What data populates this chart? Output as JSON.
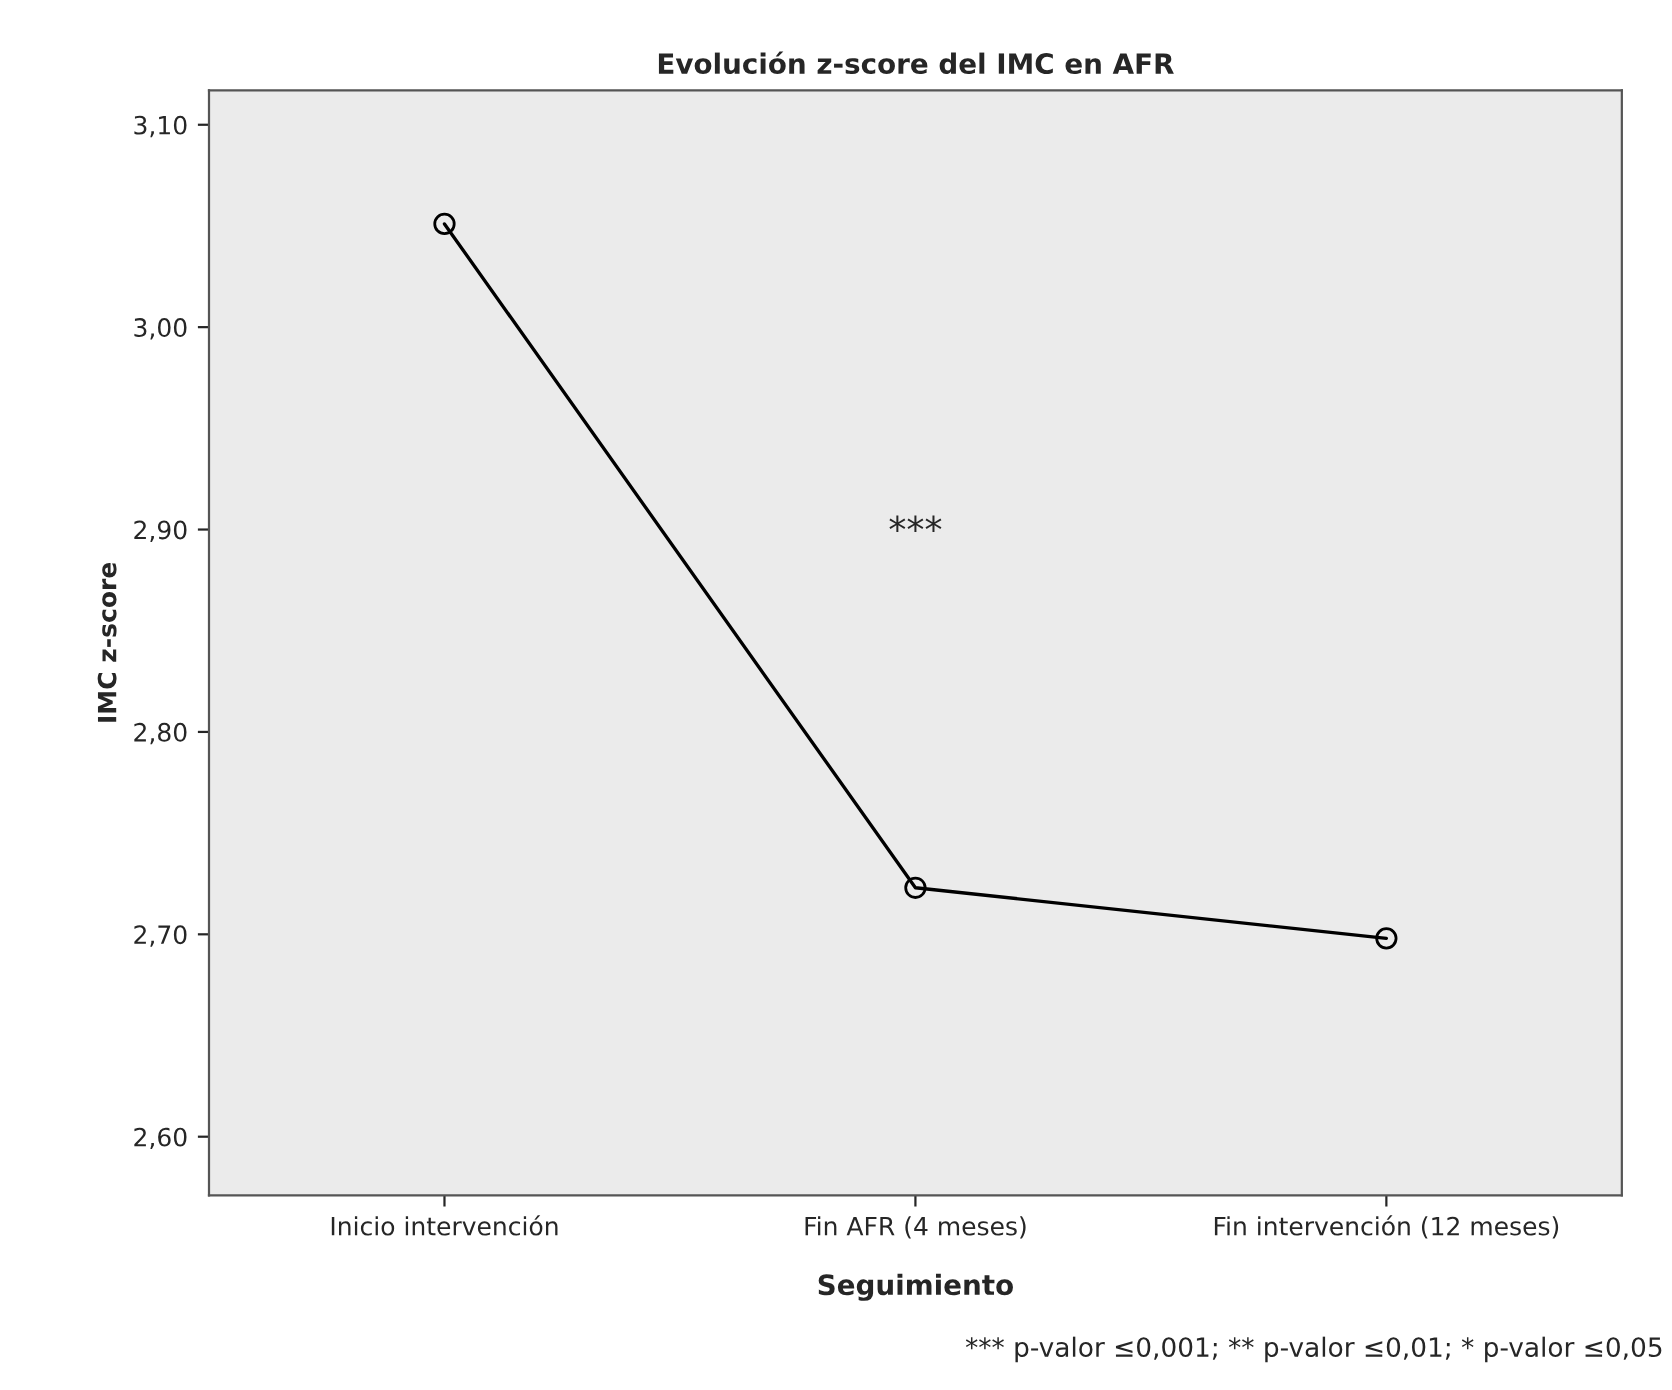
{
  "chart_data": {
    "type": "line",
    "title": "Evolución z-score del IMC en AFR",
    "xlabel": "Seguimiento",
    "ylabel": "IMC z-score",
    "categories": [
      "Inicio intervención",
      "Fin AFR (4 meses)",
      "Fin intervención (12 meses)"
    ],
    "series": [
      {
        "color": "#000000",
        "values": [
          3.051,
          2.723,
          2.698
        ]
      }
    ],
    "ylim": [
      2.571,
      3.117
    ],
    "yticks": [
      {
        "value": 2.6,
        "label": "2,60"
      },
      {
        "value": 2.7,
        "label": "2,70"
      },
      {
        "value": 2.8,
        "label": "2,80"
      },
      {
        "value": 2.9,
        "label": "2,90"
      },
      {
        "value": 3.0,
        "label": "3,00"
      },
      {
        "value": 3.1,
        "label": "3,10"
      }
    ],
    "marker": "circle",
    "line_style": "solid",
    "grid": false,
    "legend": false,
    "annotations": [
      "***",
      "*** p-valor ≤0,001; ** p-valor ≤0,01; * p-valor ≤0,05"
    ]
  }
}
